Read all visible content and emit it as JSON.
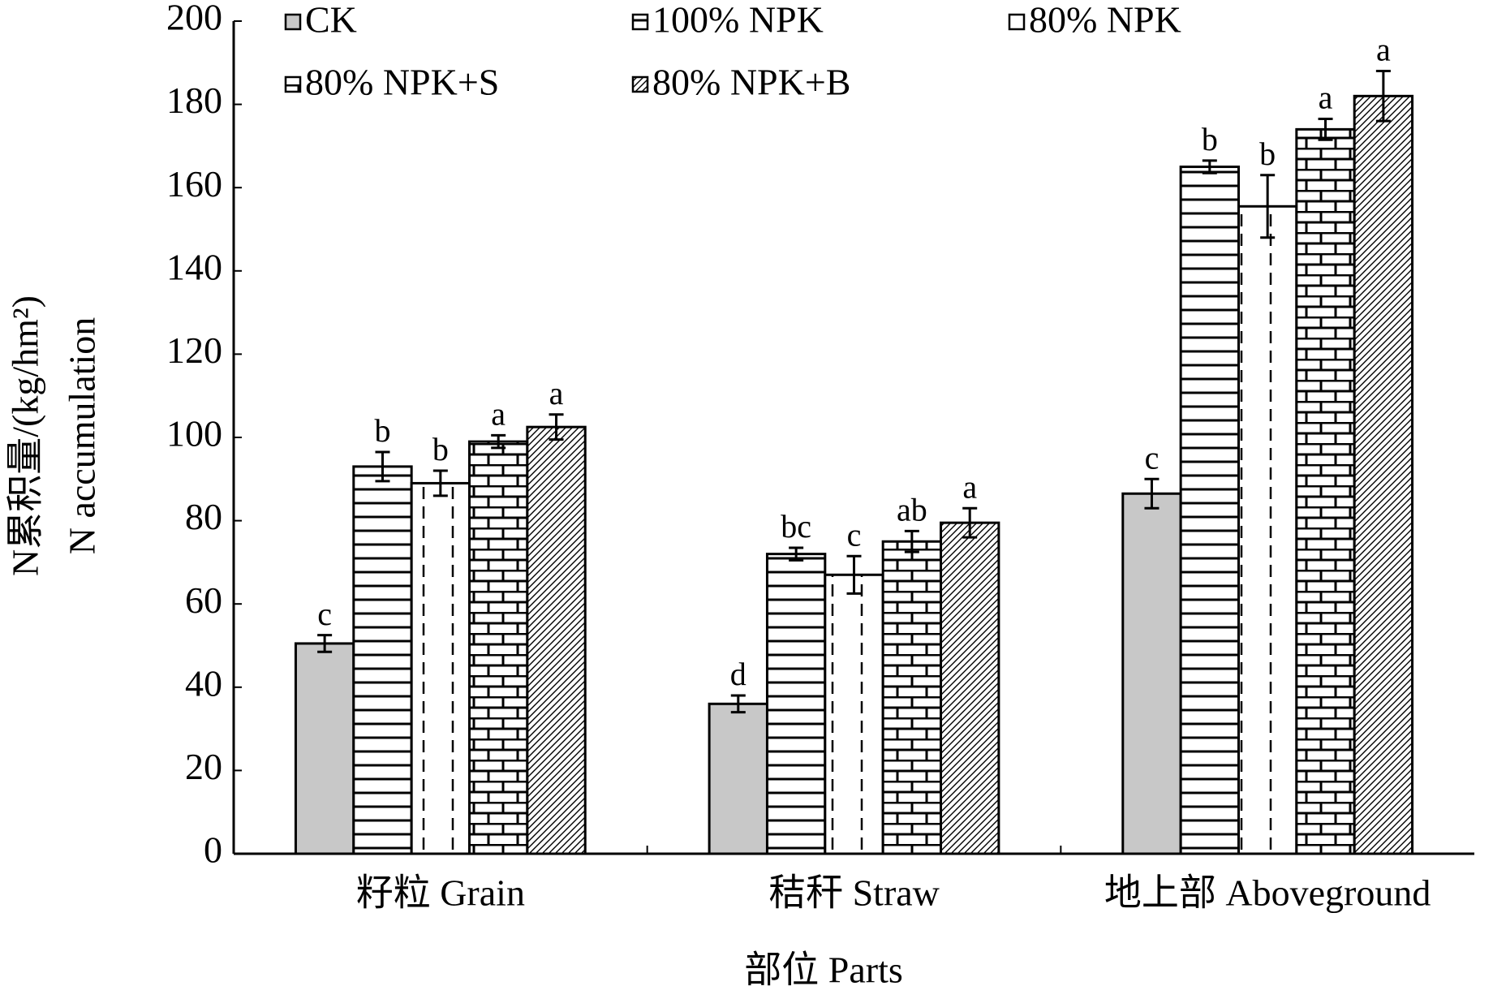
{
  "chart_data": {
    "type": "bar",
    "y_label_lines": [
      "N累积量/(kg/hm²)",
      "N accumulation"
    ],
    "x_label": "部位 Parts",
    "categories": [
      "籽粒 Grain",
      "秸秆 Straw",
      "地上部 Aboveground"
    ],
    "series": [
      {
        "name": "CK",
        "color": "#c8c8c8",
        "pattern": "solid",
        "values": [
          50.5,
          36,
          86.5
        ],
        "errors": [
          2,
          2,
          3.5
        ],
        "letters": [
          "c",
          "d",
          "c"
        ]
      },
      {
        "name": "100% NPK",
        "color": "#ffffff",
        "pattern": "horizontal",
        "values": [
          93,
          72,
          165
        ],
        "errors": [
          3.5,
          1.5,
          1.5
        ],
        "letters": [
          "b",
          "bc",
          "b"
        ]
      },
      {
        "name": "80% NPK",
        "color": "#ffffff",
        "pattern": "dashed",
        "values": [
          89,
          67,
          155.5
        ],
        "errors": [
          3,
          4.5,
          7.5
        ],
        "letters": [
          "b",
          "c",
          "b"
        ]
      },
      {
        "name": "80% NPK+S",
        "color": "#ffffff",
        "pattern": "brick",
        "values": [
          99,
          75,
          174
        ],
        "errors": [
          1.5,
          2.5,
          2.5
        ],
        "letters": [
          "a",
          "ab",
          "a"
        ]
      },
      {
        "name": "80% NPK+B",
        "color": "#ffffff",
        "pattern": "diagonal",
        "values": [
          102.5,
          79.5,
          182
        ],
        "errors": [
          3,
          3.5,
          6
        ],
        "letters": [
          "a",
          "a",
          "a"
        ]
      }
    ],
    "ylim": [
      0,
      200
    ],
    "yticks": [
      0,
      20,
      40,
      60,
      80,
      100,
      120,
      140,
      160,
      180,
      200
    ],
    "legend": "upper left"
  }
}
